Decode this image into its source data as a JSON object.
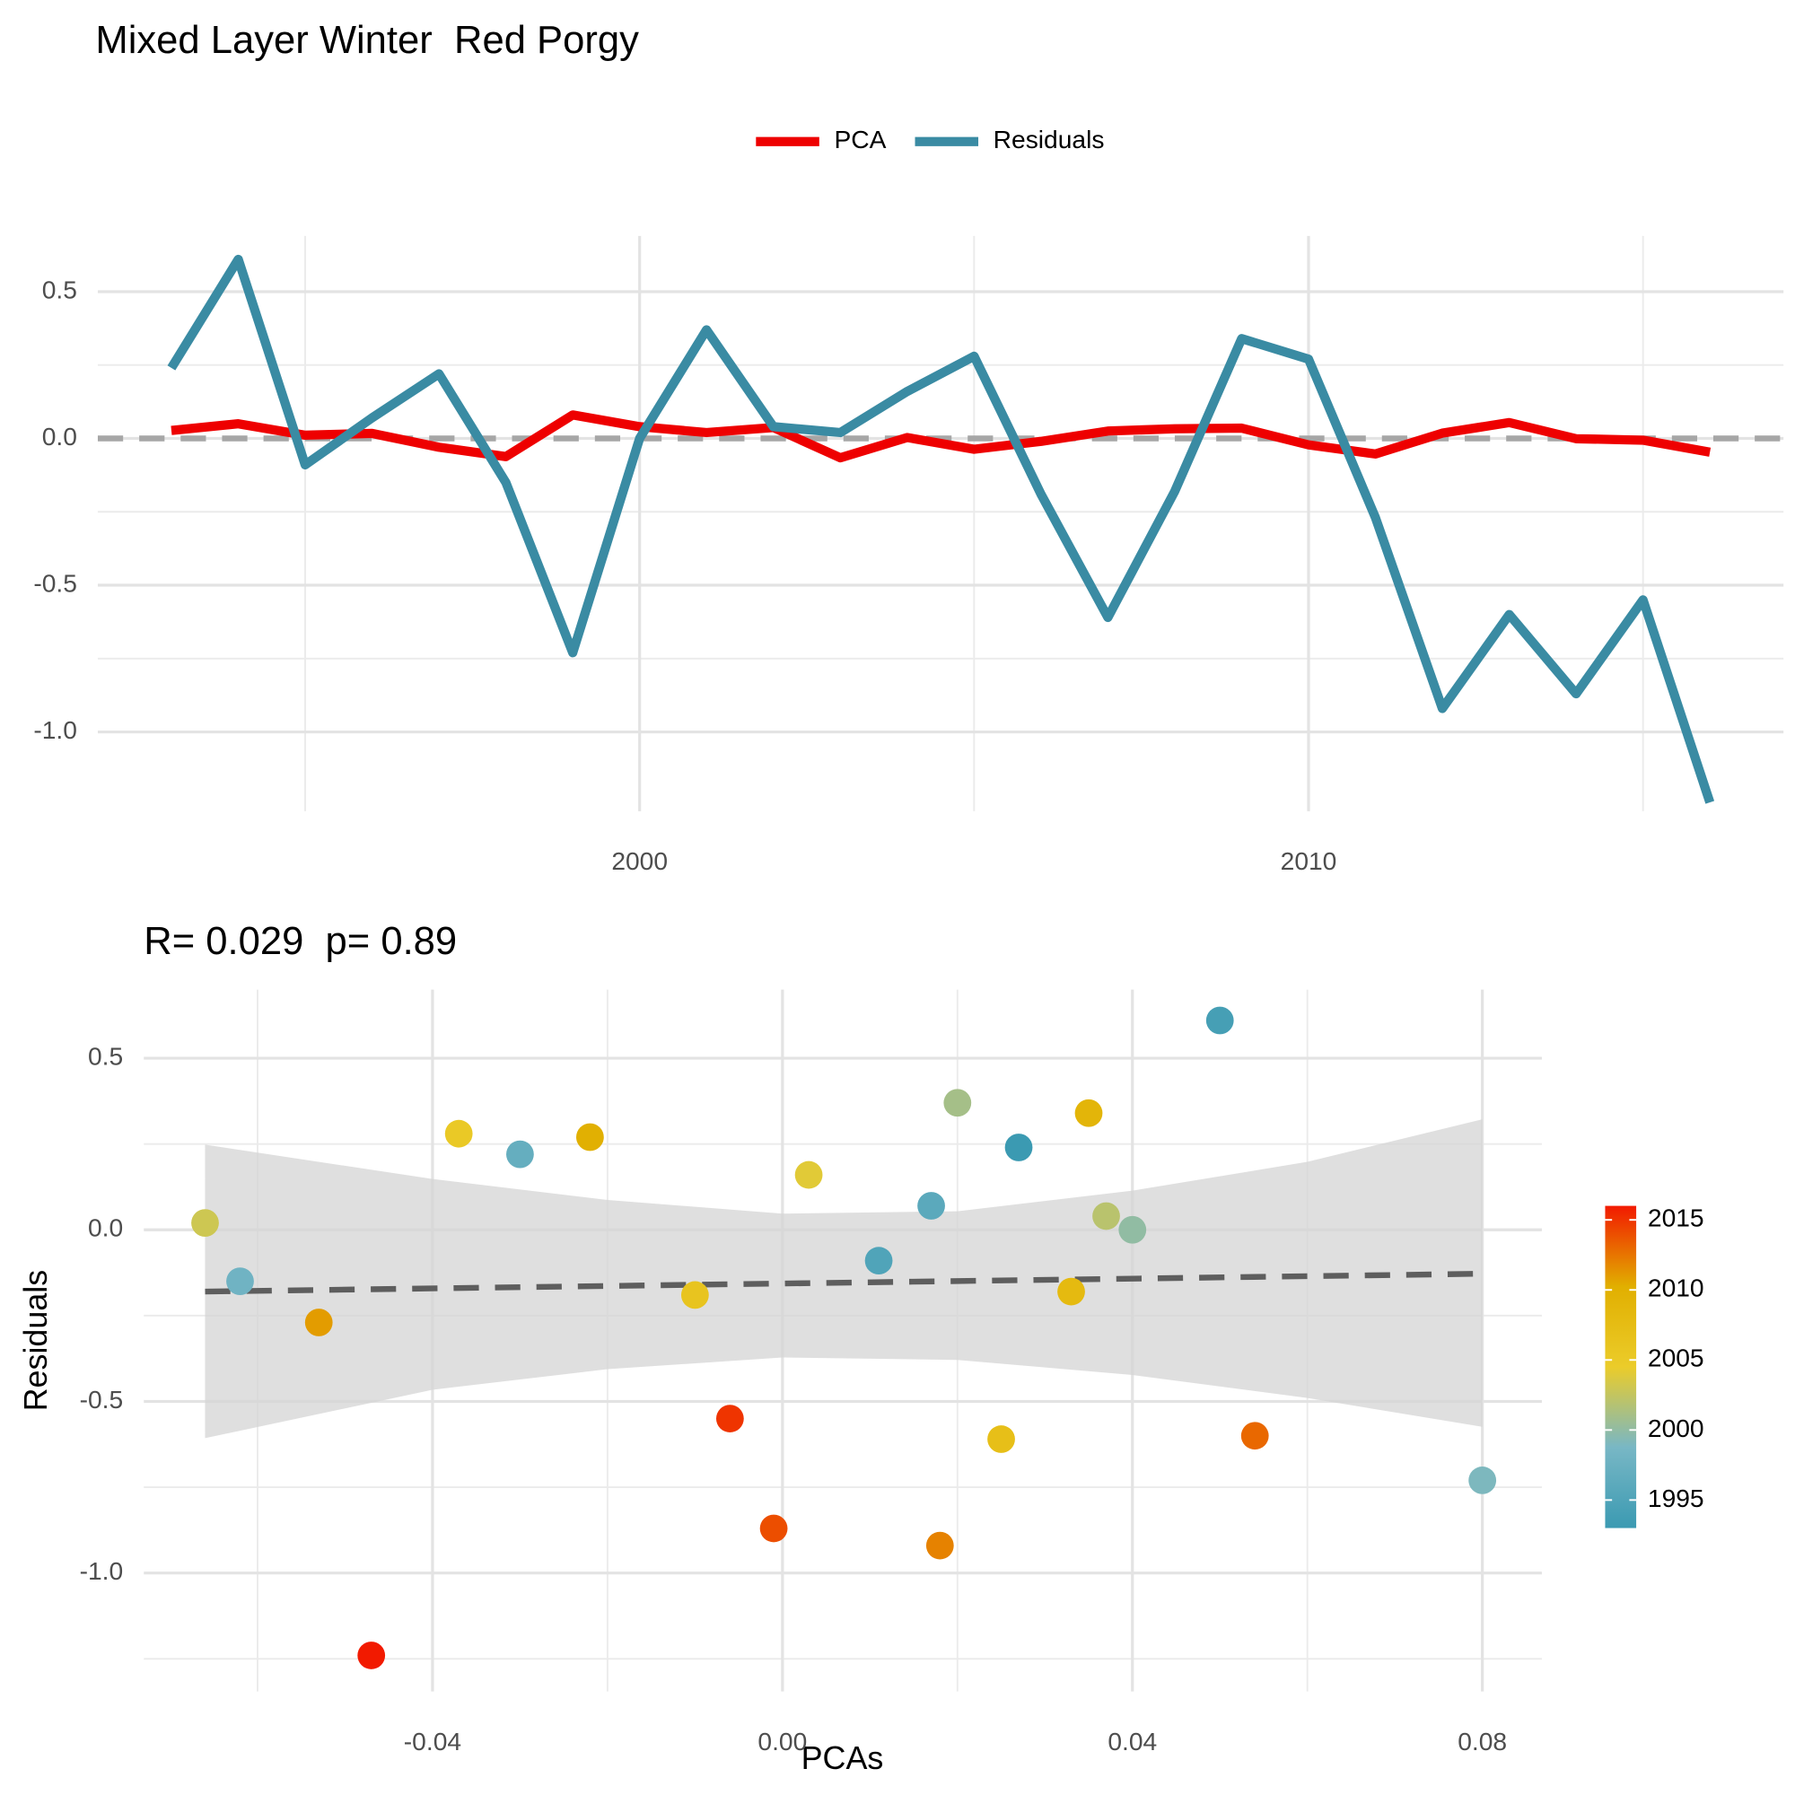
{
  "chart_data": [
    {
      "type": "line",
      "title": "Mixed Layer Winter  Red Porgy",
      "x": [
        1993,
        1994,
        1995,
        1996,
        1997,
        1998,
        1999,
        2000,
        2001,
        2002,
        2003,
        2004,
        2005,
        2006,
        2007,
        2008,
        2009,
        2010,
        2011,
        2012,
        2013,
        2014,
        2015,
        2016
      ],
      "series": [
        {
          "name": "PCA",
          "color": "#ee0000",
          "values": [
            0.027,
            0.05,
            0.011,
            0.017,
            -0.03,
            -0.062,
            0.08,
            0.04,
            0.02,
            0.037,
            -0.066,
            0.003,
            -0.037,
            -0.01,
            0.025,
            0.033,
            0.035,
            -0.022,
            -0.053,
            0.018,
            0.054,
            -0.001,
            -0.006,
            -0.047
          ]
        },
        {
          "name": "Residuals",
          "color": "#3a8ba3",
          "values": [
            0.24,
            0.61,
            -0.09,
            0.07,
            0.22,
            -0.15,
            -0.73,
            0.0,
            0.37,
            0.04,
            0.02,
            0.16,
            0.28,
            -0.19,
            -0.61,
            -0.18,
            0.34,
            0.27,
            -0.27,
            -0.92,
            -0.6,
            -0.87,
            -0.55,
            -1.24
          ]
        }
      ],
      "xlim": [
        1991.9,
        2017.1
      ],
      "xticks": [
        2000,
        2010
      ],
      "x_minor_ticks": [
        1995,
        2005,
        2015
      ],
      "ylim": [
        -1.27,
        0.69
      ],
      "yticks": [
        0.5,
        {
          "value": 0,
          "label": "0.0"
        },
        -0.5,
        {
          "value": -1,
          "label": "-1.0"
        }
      ],
      "y_minor_ticks": [
        0.25,
        -0.25,
        -0.75
      ],
      "hline": 0,
      "grid": true,
      "legend": "top"
    },
    {
      "type": "scatter",
      "title": "R= 0.029  p= 0.89",
      "x_label": "PCAs",
      "y_label": "Residuals",
      "x": [
        0.027,
        0.05,
        0.011,
        0.017,
        -0.03,
        -0.062,
        0.08,
        0.04,
        0.02,
        0.037,
        -0.066,
        0.003,
        -0.037,
        -0.01,
        0.025,
        0.033,
        0.035,
        -0.022,
        -0.053,
        0.018,
        0.054,
        -0.001,
        -0.006,
        -0.047
      ],
      "y": [
        0.24,
        0.61,
        -0.09,
        0.07,
        0.22,
        -0.15,
        -0.73,
        0.0,
        0.37,
        0.04,
        0.02,
        0.16,
        0.28,
        -0.19,
        -0.61,
        -0.18,
        0.34,
        0.27,
        -0.27,
        -0.92,
        -0.6,
        -0.87,
        -0.55,
        -1.24
      ],
      "color_values": [
        1993,
        1994,
        1995,
        1996,
        1997,
        1998,
        1999,
        2000,
        2001,
        2002,
        2003,
        2004,
        2005,
        2006,
        2007,
        2008,
        2009,
        2010,
        2011,
        2012,
        2013,
        2014,
        2015,
        2016
      ],
      "palette": [
        "#3b9ab2",
        "#78b7c5",
        "#ebcc2a",
        "#e1af00",
        "#f21a00"
      ],
      "colorbar_lim": [
        1993,
        2016
      ],
      "colorbar_ticks": [
        1995,
        2000,
        2005,
        2010,
        2015
      ],
      "xlim": [
        -0.073,
        0.0868
      ],
      "xticks": [
        -0.04,
        {
          "value": 0,
          "label": "0.00"
        },
        0.04,
        0.08
      ],
      "x_minor_ticks": [
        -0.06,
        -0.02,
        0.02,
        0.06
      ],
      "ylim": [
        -1.345,
        0.7
      ],
      "yticks": [
        0.5,
        {
          "value": 0,
          "label": "0.0"
        },
        -0.5,
        {
          "value": -1,
          "label": "-1.0"
        }
      ],
      "y_minor_ticks": [
        0.25,
        -0.25,
        -0.75,
        -1.25
      ],
      "grid": true,
      "fit": {
        "x": [
          -0.066,
          0.08
        ],
        "y": [
          -0.18,
          -0.128
        ]
      },
      "band": {
        "x": [
          -0.066,
          -0.04,
          -0.02,
          0,
          0.02,
          0.04,
          0.06,
          0.08
        ],
        "upper": [
          0.248,
          0.148,
          0.087,
          0.047,
          0.054,
          0.114,
          0.198,
          0.322
        ],
        "lower": [
          -0.607,
          -0.466,
          -0.406,
          -0.372,
          -0.379,
          -0.423,
          -0.49,
          -0.574
        ]
      }
    }
  ]
}
